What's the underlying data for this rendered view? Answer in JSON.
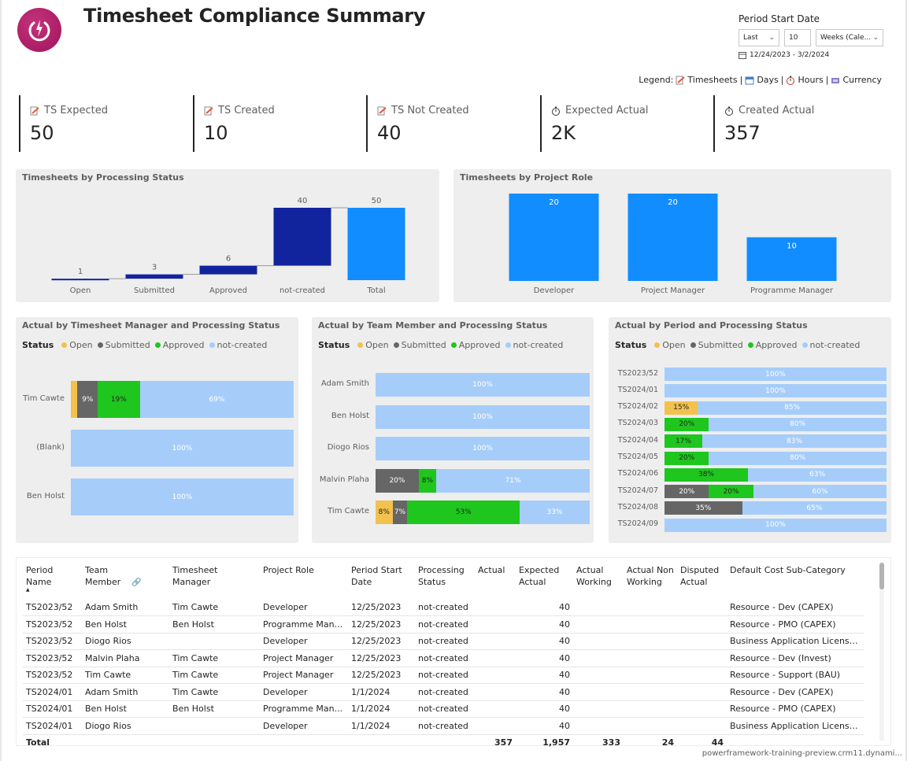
{
  "header": {
    "title": "Timesheet Compliance Summary"
  },
  "period": {
    "label": "Period Start Date",
    "relative": "Last",
    "count": "10",
    "unit": "Weeks (Cale...",
    "range": "12/24/2023 - 3/2/2024"
  },
  "legend": {
    "prefix": "Legend:",
    "items": [
      "Timesheets",
      "Days",
      "Hours",
      "Currency"
    ],
    "separator": "|"
  },
  "kpis": [
    {
      "label": "TS Expected",
      "value": "50",
      "icon": "timesheet-icon"
    },
    {
      "label": "TS Created",
      "value": "10",
      "icon": "timesheet-icon"
    },
    {
      "label": "TS Not Created",
      "value": "40",
      "icon": "timesheet-icon"
    },
    {
      "label": "Expected Actual",
      "value": "2K",
      "icon": "stopwatch-icon"
    },
    {
      "label": "Created Actual",
      "value": "357",
      "icon": "stopwatch-icon"
    }
  ],
  "colors": {
    "open": "#f2c14e",
    "submitted": "#666666",
    "approved": "#1ec61e",
    "not_created": "#a6cdfa",
    "waterfall_dark": "#12239e",
    "bar_blue": "#118dff"
  },
  "status_legend": {
    "label": "Status",
    "items": [
      "Open",
      "Submitted",
      "Approved",
      "not-created"
    ]
  },
  "charts": [
    {
      "type": "bar",
      "subtype": "waterfall",
      "title": "Timesheets by Processing Status",
      "categories": [
        "Open",
        "Submitted",
        "Approved",
        "not-created",
        "Total"
      ],
      "values": [
        1,
        3,
        6,
        40,
        50
      ]
    },
    {
      "type": "bar",
      "title": "Timesheets by Project Role",
      "categories": [
        "Developer",
        "Project Manager",
        "Programme Manager"
      ],
      "values": [
        20,
        20,
        10
      ]
    },
    {
      "type": "bar",
      "subtype": "stacked-100-horizontal",
      "title": "Actual by Timesheet Manager and Processing Status",
      "categories": [
        "Tim Cawte",
        "(Blank)",
        "Ben Holst"
      ],
      "series": [
        {
          "name": "Open",
          "values": [
            3,
            0,
            0
          ],
          "labels": [
            "",
            "",
            ""
          ]
        },
        {
          "name": "Submitted",
          "values": [
            9,
            0,
            0
          ],
          "labels": [
            "9%",
            "",
            ""
          ]
        },
        {
          "name": "Approved",
          "values": [
            19,
            0,
            0
          ],
          "labels": [
            "19%",
            "",
            ""
          ]
        },
        {
          "name": "not-created",
          "values": [
            69,
            100,
            100
          ],
          "labels": [
            "69%",
            "100%",
            "100%"
          ]
        }
      ]
    },
    {
      "type": "bar",
      "subtype": "stacked-100-horizontal",
      "title": "Actual by Team Member and Processing Status",
      "categories": [
        "Adam Smith",
        "Ben Holst",
        "Diogo Rios",
        "Malvin Plaha",
        "Tim Cawte"
      ],
      "series": [
        {
          "name": "Open",
          "values": [
            0,
            0,
            0,
            0,
            8
          ],
          "labels": [
            "",
            "",
            "",
            "",
            "8%"
          ]
        },
        {
          "name": "Submitted",
          "values": [
            0,
            0,
            0,
            20,
            7
          ],
          "labels": [
            "",
            "",
            "",
            "20%",
            "7%"
          ]
        },
        {
          "name": "Approved",
          "values": [
            0,
            0,
            0,
            8,
            53
          ],
          "labels": [
            "",
            "",
            "",
            "8%",
            "53%"
          ]
        },
        {
          "name": "not-created",
          "values": [
            100,
            100,
            100,
            71,
            33
          ],
          "labels": [
            "100%",
            "100%",
            "100%",
            "71%",
            "33%"
          ]
        }
      ]
    },
    {
      "type": "bar",
      "subtype": "stacked-100-horizontal",
      "title": "Actual by Period and Processing Status",
      "categories": [
        "TS2023/52",
        "TS2024/01",
        "TS2024/02",
        "TS2024/03",
        "TS2024/04",
        "TS2024/05",
        "TS2024/06",
        "TS2024/07",
        "TS2024/08",
        "TS2024/09"
      ],
      "series": [
        {
          "name": "Open",
          "values": [
            0,
            0,
            15,
            0,
            0,
            0,
            0,
            0,
            0,
            0
          ],
          "labels": [
            "",
            "",
            "15%",
            "",
            "",
            "",
            "",
            "",
            "",
            ""
          ]
        },
        {
          "name": "Submitted",
          "values": [
            0,
            0,
            0,
            0,
            0,
            0,
            0,
            20,
            35,
            0
          ],
          "labels": [
            "",
            "",
            "",
            "",
            "",
            "",
            "",
            "20%",
            "35%",
            ""
          ]
        },
        {
          "name": "Approved",
          "values": [
            0,
            0,
            0,
            20,
            17,
            20,
            38,
            20,
            0,
            0
          ],
          "labels": [
            "",
            "",
            "",
            "20%",
            "17%",
            "20%",
            "38%",
            "20%",
            "",
            ""
          ]
        },
        {
          "name": "not-created",
          "values": [
            100,
            100,
            85,
            80,
            83,
            80,
            63,
            60,
            65,
            100
          ],
          "labels": [
            "100%",
            "100%",
            "85%",
            "80%",
            "83%",
            "80%",
            "63%",
            "60%",
            "65%",
            "100%"
          ]
        }
      ]
    }
  ],
  "table": {
    "columns": [
      "Period Name",
      "Team Member",
      "Timesheet Manager",
      "Project Role",
      "Period Start Date",
      "Processing Status",
      "Actual",
      "Expected Actual",
      "Actual Working",
      "Actual Non Working",
      "Disputed Actual",
      "Default Cost Sub-Category"
    ],
    "rows": [
      [
        "TS2023/52",
        "Adam Smith",
        "Tim Cawte",
        "Developer",
        "12/25/2023",
        "not-created",
        "",
        "40",
        "",
        "",
        "",
        "Resource - Dev (CAPEX)"
      ],
      [
        "TS2023/52",
        "Ben Holst",
        "Ben Holst",
        "Programme Man...",
        "12/25/2023",
        "not-created",
        "",
        "40",
        "",
        "",
        "",
        "Resource - PMO (CAPEX)"
      ],
      [
        "TS2023/52",
        "Diogo Rios",
        "",
        "Developer",
        "12/25/2023",
        "not-created",
        "",
        "40",
        "",
        "",
        "",
        "Business Application License..."
      ],
      [
        "TS2023/52",
        "Malvin Plaha",
        "Tim Cawte",
        "Project Manager",
        "12/25/2023",
        "not-created",
        "",
        "40",
        "",
        "",
        "",
        "Resource - Dev (Invest)"
      ],
      [
        "TS2023/52",
        "Tim Cawte",
        "Tim Cawte",
        "Project Manager",
        "12/25/2023",
        "not-created",
        "",
        "40",
        "",
        "",
        "",
        "Resource - Support (BAU)"
      ],
      [
        "TS2024/01",
        "Adam Smith",
        "Tim Cawte",
        "Developer",
        "1/1/2024",
        "not-created",
        "",
        "40",
        "",
        "",
        "",
        "Resource - Dev (CAPEX)"
      ],
      [
        "TS2024/01",
        "Ben Holst",
        "Ben Holst",
        "Programme Man...",
        "1/1/2024",
        "not-created",
        "",
        "40",
        "",
        "",
        "",
        "Resource - PMO (CAPEX)"
      ],
      [
        "TS2024/01",
        "Diogo Rios",
        "",
        "Developer",
        "1/1/2024",
        "not-created",
        "",
        "40",
        "",
        "",
        "",
        "Business Application License..."
      ]
    ],
    "total": [
      "Total",
      "",
      "",
      "",
      "",
      "",
      "357",
      "1,957",
      "333",
      "24",
      "44",
      ""
    ]
  },
  "footer": {
    "url": "powerframework-training-preview.crm11.dynami..."
  }
}
